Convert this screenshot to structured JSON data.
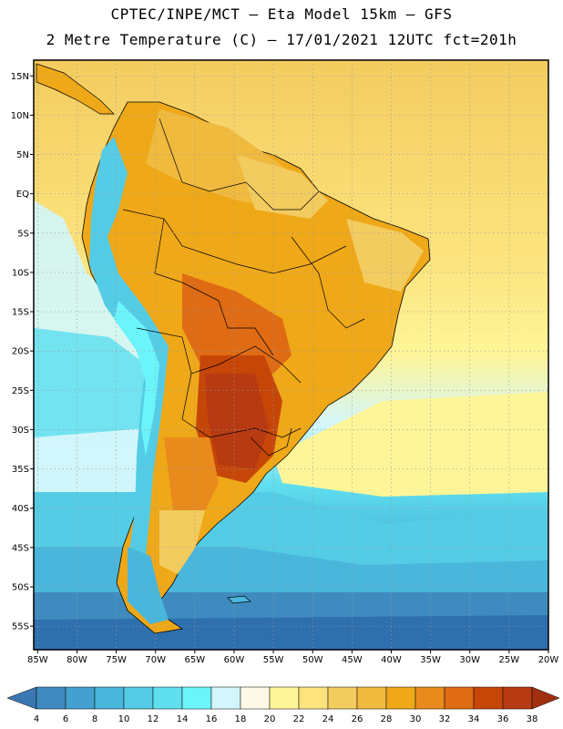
{
  "title": {
    "line1": "CPTEC/INPE/MCT –  Eta Model 15km – GFS",
    "line2": "2 Metre Temperature (C) – 17/01/2021 12UTC fct=201h"
  },
  "axes": {
    "lat_labels": [
      "15N",
      "10N",
      "5N",
      "EQ",
      "5S",
      "10S",
      "15S",
      "20S",
      "25S",
      "30S",
      "35S",
      "40S",
      "45S",
      "50S",
      "55S"
    ],
    "lon_labels": [
      "85W",
      "80W",
      "75W",
      "70W",
      "65W",
      "60W",
      "55W",
      "50W",
      "45W",
      "40W",
      "35W",
      "30W",
      "25W",
      "20W"
    ],
    "lat_range": [
      17,
      -58
    ],
    "lon_range": [
      -85.5,
      -20
    ]
  },
  "colorbar": {
    "ticks": [
      "4",
      "6",
      "8",
      "10",
      "12",
      "14",
      "16",
      "18",
      "20",
      "22",
      "24",
      "26",
      "28",
      "30",
      "32",
      "34",
      "36",
      "38"
    ],
    "colors": [
      "#3a77b3",
      "#3f8bbf",
      "#44a0ce",
      "#49b6dc",
      "#54cce6",
      "#60dfef",
      "#6cf4fb",
      "#d2f6fb",
      "#fef9e6",
      "#fef598",
      "#fce37d",
      "#f3cc5f",
      "#f0ba3f",
      "#efa818",
      "#e98a1c",
      "#df6b14",
      "#c64608",
      "#b83a12",
      "#a13010"
    ]
  },
  "colors": {
    "ocean_deep": "#2e6fae",
    "ocean_cold": "#49b6dc",
    "ocean_cool": "#60dfef",
    "ocean_warm": "#fce37d",
    "land_hot": "#efa818",
    "land_very_hot": "#c64608",
    "andes": "#54cce6",
    "border": "#000000"
  }
}
